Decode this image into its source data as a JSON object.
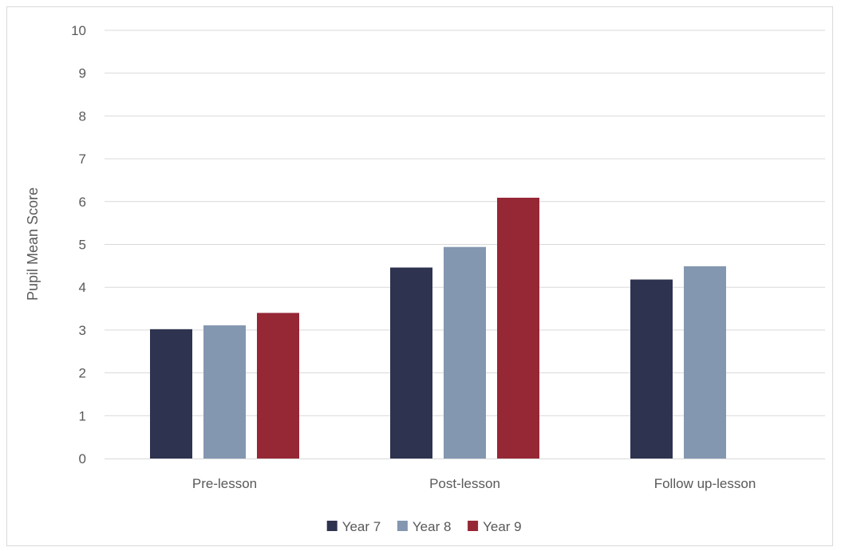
{
  "chart_data": {
    "type": "bar",
    "categories": [
      "Pre-lesson",
      "Post-lesson",
      "Follow up-lesson"
    ],
    "series": [
      {
        "name": "Year 7",
        "color": "#2e3350",
        "values": [
          3.02,
          4.46,
          4.18
        ]
      },
      {
        "name": "Year 8",
        "color": "#8497b0",
        "values": [
          3.11,
          4.94,
          4.49
        ]
      },
      {
        "name": "Year 9",
        "color": "#962735",
        "values": [
          3.4,
          6.09,
          null
        ]
      }
    ],
    "ylabel": "Pupil Mean Score",
    "ylim": [
      0,
      10
    ],
    "yticks": [
      "0",
      "1",
      "2",
      "3",
      "4",
      "5",
      "6",
      "7",
      "8",
      "9",
      "10"
    ],
    "grid": true,
    "legend_position": "bottom"
  }
}
